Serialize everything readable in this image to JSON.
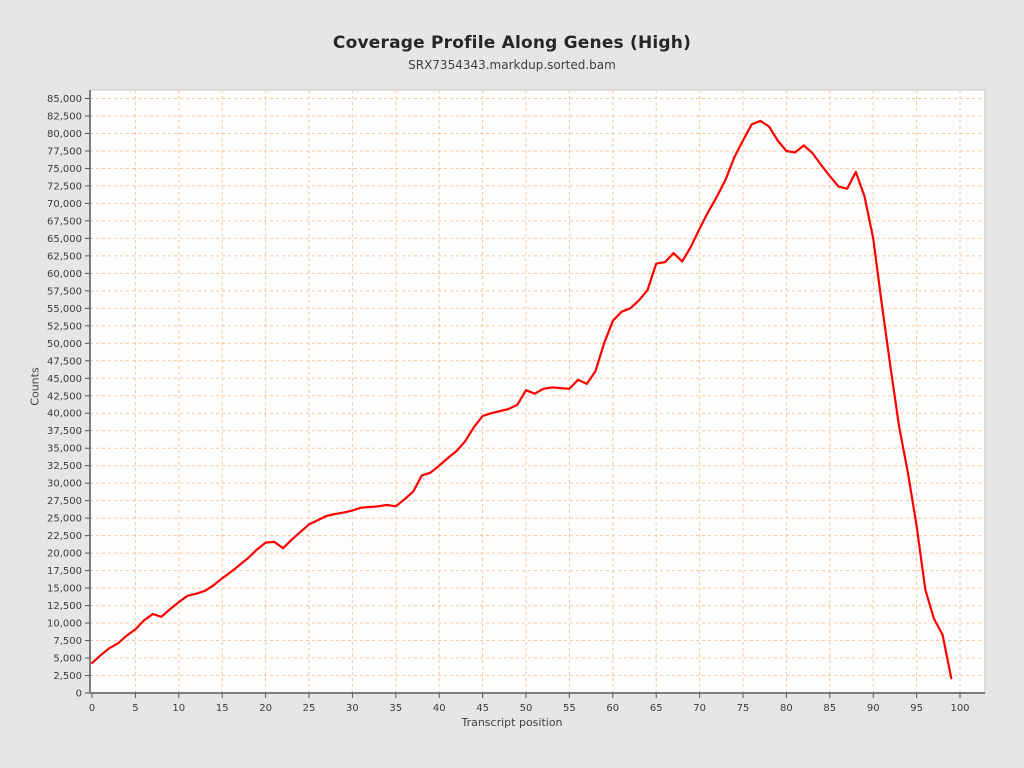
{
  "header": {
    "title": "Coverage Profile Along Genes (High)",
    "subtitle": "SRX7354343.markdup.sorted.bam"
  },
  "chart_data": {
    "type": "line",
    "title": "Coverage Profile Along Genes (High)",
    "subtitle": "SRX7354343.markdup.sorted.bam",
    "xlabel": "Transcript position",
    "ylabel": "Counts",
    "xlim": [
      0,
      100
    ],
    "ylim": [
      0,
      85000
    ],
    "xtick_step": 5,
    "ytick_step": 2500,
    "grid": true,
    "legend": "none",
    "x_start": 0,
    "x": [
      0,
      1,
      2,
      3,
      4,
      5,
      6,
      7,
      8,
      9,
      10,
      11,
      12,
      13,
      14,
      15,
      16,
      17,
      18,
      19,
      20,
      21,
      22,
      23,
      24,
      25,
      26,
      27,
      28,
      29,
      30,
      31,
      32,
      33,
      34,
      35,
      36,
      37,
      38,
      39,
      40,
      41,
      42,
      43,
      44,
      45,
      46,
      47,
      48,
      49,
      50,
      51,
      52,
      53,
      54,
      55,
      56,
      57,
      58,
      59,
      60,
      61,
      62,
      63,
      64,
      65,
      66,
      67,
      68,
      69,
      70,
      71,
      72,
      73,
      74,
      75,
      76,
      77,
      78,
      79,
      80,
      81,
      82,
      83,
      84,
      85,
      86,
      87,
      88,
      89,
      90,
      91,
      92,
      93,
      94,
      95,
      96,
      97,
      98,
      99
    ],
    "values": [
      4300,
      5400,
      6400,
      7100,
      8200,
      9100,
      10400,
      11300,
      10900,
      12000,
      13000,
      13900,
      14200,
      14600,
      15400,
      16400,
      17300,
      18300,
      19300,
      20500,
      21500,
      21600,
      20700,
      21900,
      23000,
      24100,
      24700,
      25300,
      25600,
      25800,
      26100,
      26500,
      26600,
      26700,
      26900,
      26700,
      27700,
      28800,
      31100,
      31500,
      32500,
      33600,
      34600,
      36000,
      38000,
      39600,
      40000,
      40300,
      40600,
      41200,
      43300,
      42800,
      43500,
      43700,
      43600,
      43500,
      44800,
      44200,
      46000,
      50000,
      53200,
      54500,
      55000,
      56100,
      57600,
      61400,
      61600,
      62900,
      61700,
      63800,
      66400,
      68800,
      71000,
      73400,
      76600,
      79000,
      81300,
      81800,
      81000,
      79000,
      77500,
      77300,
      78300,
      77200,
      75500,
      73900,
      72400,
      72100,
      74500,
      71000,
      65000,
      55500,
      46500,
      38000,
      31500,
      23900,
      14800,
      10600,
      8300,
      2100
    ],
    "colors": {
      "line": "#ff0000",
      "grid": "#f5c79e",
      "plot_bg": "#fdfdfd",
      "page_bg": "#e6e6e6",
      "axis": "#7d7d7d",
      "border": "#c6c6c6",
      "tick": "#555555",
      "tick_text": "#3c3c3c"
    }
  }
}
